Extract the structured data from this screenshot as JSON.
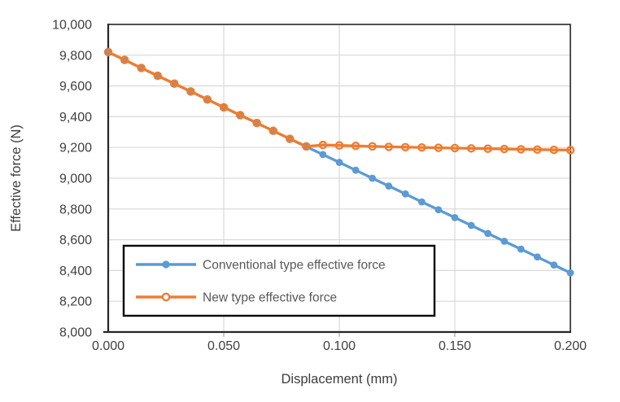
{
  "page": {
    "background_color": "#ffffff"
  },
  "chart_data": {
    "type": "line",
    "title": "",
    "xlabel": "Displacement (mm)",
    "ylabel": "Effective force (N)",
    "xlim": [
      0.0,
      0.2
    ],
    "ylim": [
      8000,
      10000
    ],
    "grid": true,
    "gridline_color": "#d9d9d9",
    "axis_color": "#262626",
    "tick_color": "#a6a6a6",
    "x_tick_values": [
      0.0,
      0.05,
      0.1,
      0.15,
      0.2
    ],
    "x_tick_labels": [
      "0.000",
      "0.050",
      "0.100",
      "0.150",
      "0.200"
    ],
    "y_tick_values": [
      8000,
      8200,
      8400,
      8600,
      8800,
      9000,
      9200,
      9400,
      9600,
      9800,
      10000
    ],
    "y_tick_labels": [
      "8,000",
      "8,200",
      "8,400",
      "8,600",
      "8,800",
      "9,000",
      "9,200",
      "9,400",
      "9,600",
      "9,800",
      "10,000"
    ],
    "x": [
      0.0,
      0.0071,
      0.0143,
      0.0214,
      0.0286,
      0.0357,
      0.0429,
      0.05,
      0.0571,
      0.0643,
      0.0714,
      0.0786,
      0.0857,
      0.0929,
      0.1,
      0.1071,
      0.1143,
      0.1214,
      0.1286,
      0.1357,
      0.1429,
      0.15,
      0.1571,
      0.1643,
      0.1714,
      0.1786,
      0.1857,
      0.1929,
      0.2
    ],
    "series": [
      {
        "name": "Conventional type effective force",
        "color": "#5b9bd5",
        "marker": "filled-circle",
        "values": [
          9820,
          9769,
          9717,
          9666,
          9615,
          9564,
          9512,
          9461,
          9410,
          9359,
          9308,
          9256,
          9205,
          9154,
          9103,
          9052,
          9000,
          8949,
          8898,
          8846,
          8795,
          8744,
          8693,
          8641,
          8590,
          8539,
          8488,
          8436,
          8385
        ]
      },
      {
        "name": "New type effective force",
        "color": "#ed7d31",
        "marker": "open-circle",
        "values": [
          9820,
          9769,
          9717,
          9666,
          9615,
          9564,
          9512,
          9461,
          9410,
          9359,
          9308,
          9256,
          9207,
          9216,
          9213,
          9210,
          9207,
          9204,
          9202,
          9200,
          9198,
          9196,
          9194,
          9192,
          9190,
          9188,
          9186,
          9184,
          9183
        ]
      }
    ],
    "legend": {
      "position": "inside-bottom-left",
      "background": "#ffffff",
      "border_color": "#000000",
      "text_color": "#595959"
    }
  }
}
